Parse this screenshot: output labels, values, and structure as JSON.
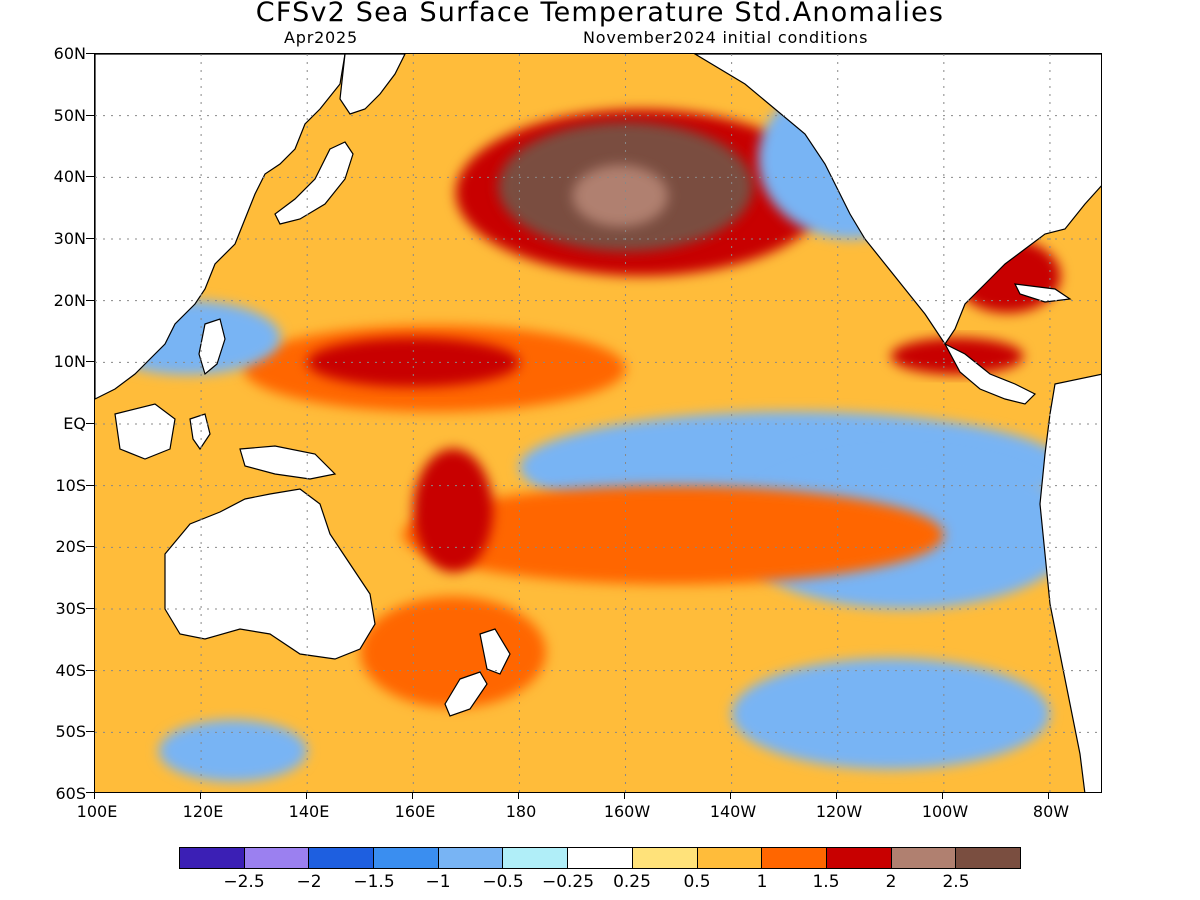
{
  "title": "CFSv2 Sea Surface Temperature Std.Anomalies",
  "subtitle_left": "Apr2025",
  "subtitle_right": "November2024 initial conditions",
  "lat_labels": [
    "60N",
    "50N",
    "40N",
    "30N",
    "20N",
    "10N",
    "EQ",
    "10S",
    "20S",
    "30S",
    "40S",
    "50S",
    "60S"
  ],
  "lon_labels": [
    "100E",
    "120E",
    "140E",
    "160E",
    "180",
    "160W",
    "140W",
    "120W",
    "100W",
    "80W"
  ],
  "colorbar": {
    "colors": [
      "#3b1fb5",
      "#9b80f0",
      "#1e5fe0",
      "#3a8ef0",
      "#78b4f4",
      "#b0eef8",
      "#ffffff",
      "#ffe27a",
      "#ffbc3a",
      "#ff6600",
      "#c80000",
      "#b08070",
      "#7a4e40"
    ],
    "labels": [
      "−2.5",
      "−2",
      "−1.5",
      "−1",
      "−0.5",
      "−0.25",
      "0.25",
      "0.5",
      "1",
      "1.5",
      "2",
      "2.5"
    ]
  },
  "map": {
    "lat_range": [
      -60,
      60
    ],
    "lon_range": [
      100,
      290
    ],
    "grid": true,
    "land_color": "#ffffff",
    "ocean_base_color": "#ffbc3a",
    "anomaly_regions": [
      {
        "name": "north-pacific-warm-blob",
        "color": "#c80000",
        "lon": [
          168,
          238
        ],
        "lat": [
          24,
          51
        ]
      },
      {
        "name": "north-pacific-strong-anomaly",
        "color": "#7a4e40",
        "lon": [
          176,
          224
        ],
        "lat": [
          28,
          49
        ]
      },
      {
        "name": "north-pacific-peak",
        "color": "#b08070",
        "lon": [
          190,
          208
        ],
        "lat": [
          32,
          42
        ]
      },
      {
        "name": "western-pacific-warm-band",
        "color": "#ff6600",
        "lon": [
          128,
          200
        ],
        "lat": [
          2,
          16
        ]
      },
      {
        "name": "western-pacific-core",
        "color": "#c80000",
        "lon": [
          140,
          180
        ],
        "lat": [
          6,
          14
        ]
      },
      {
        "name": "equatorial-cold-tongue",
        "color": "#78b4f4",
        "lon": [
          180,
          283
        ],
        "lat": [
          -16,
          2
        ]
      },
      {
        "name": "eastern-pacific-cool",
        "color": "#78b4f4",
        "lon": [
          220,
          285
        ],
        "lat": [
          -30,
          -5
        ]
      },
      {
        "name": "south-pacific-warm-band",
        "color": "#ff6600",
        "lon": [
          158,
          260
        ],
        "lat": [
          -26,
          -10
        ]
      },
      {
        "name": "south-pacific-warm-core",
        "color": "#c80000",
        "lon": [
          160,
          175
        ],
        "lat": [
          -24,
          -4
        ]
      },
      {
        "name": "tasman-warm",
        "color": "#ff6600",
        "lon": [
          150,
          185
        ],
        "lat": [
          -46,
          -28
        ]
      },
      {
        "name": "southern-ocean-cool",
        "color": "#78b4f4",
        "lon": [
          220,
          280
        ],
        "lat": [
          -56,
          -38
        ]
      },
      {
        "name": "southwest-indian-cool",
        "color": "#78b4f4",
        "lon": [
          112,
          140
        ],
        "lat": [
          -58,
          -48
        ]
      },
      {
        "name": "gulf-of-mexico-warm",
        "color": "#c80000",
        "lon": [
          262,
          282
        ],
        "lat": [
          18,
          30
        ]
      },
      {
        "name": "central-america-warm",
        "color": "#c80000",
        "lon": [
          250,
          275
        ],
        "lat": [
          8,
          14
        ]
      },
      {
        "name": "north-coast-cool",
        "color": "#78b4f4",
        "lon": [
          225,
          260
        ],
        "lat": [
          30,
          56
        ]
      },
      {
        "name": "maritime-cool",
        "color": "#78b4f4",
        "lon": [
          100,
          135
        ],
        "lat": [
          8,
          20
        ]
      }
    ]
  }
}
